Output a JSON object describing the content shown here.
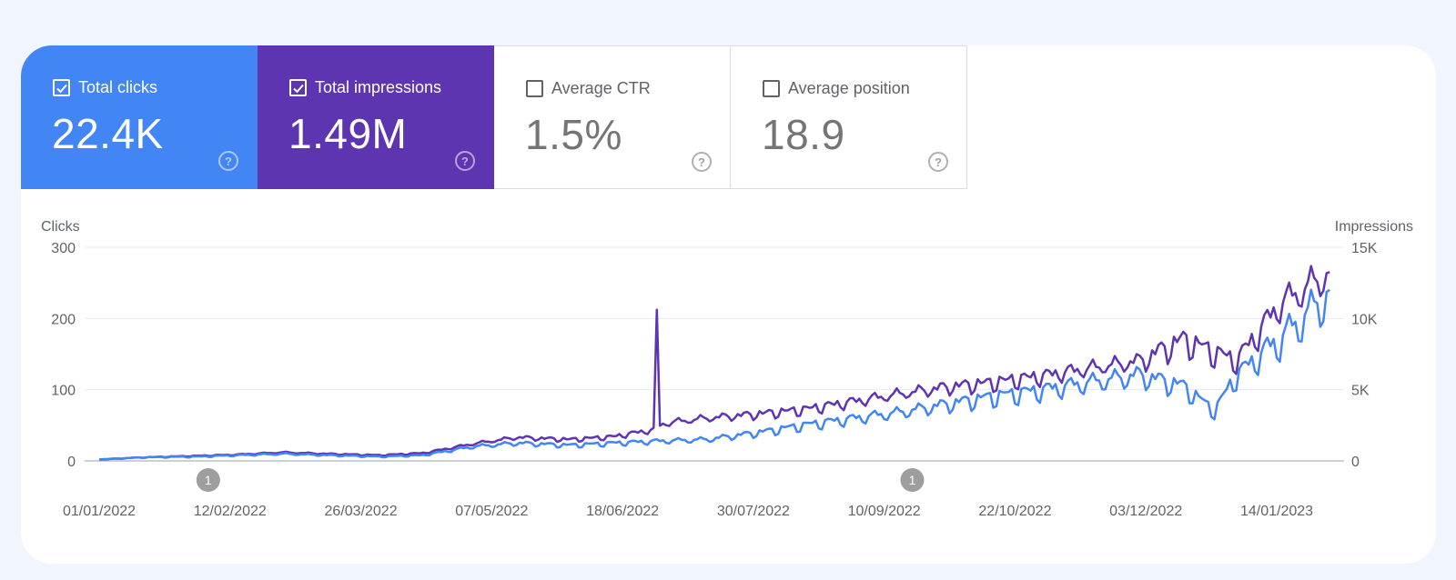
{
  "metrics": [
    {
      "label": "Total clicks",
      "value": "22.4K",
      "checked": true,
      "color": "#4285f4"
    },
    {
      "label": "Total impressions",
      "value": "1.49M",
      "checked": true,
      "color": "#5e35b1"
    },
    {
      "label": "Average CTR",
      "value": "1.5%",
      "checked": false
    },
    {
      "label": "Average position",
      "value": "18.9",
      "checked": false
    }
  ],
  "icons": {
    "checkbox": "checkbox-icon",
    "help": "help-circle-icon",
    "annotation": "annotation-marker-icon"
  },
  "chart_data": {
    "type": "line",
    "x_start": "2022-01-01",
    "x_end": "2023-01-31",
    "xlabel": "",
    "y_left": {
      "label": "Clicks",
      "ylim": [
        0,
        300
      ],
      "ticks": [
        0,
        100,
        200,
        300
      ],
      "tick_labels": [
        "0",
        "100",
        "200",
        "300"
      ]
    },
    "y_right": {
      "label": "Impressions",
      "ylim": [
        0,
        15000
      ],
      "ticks": [
        0,
        5000,
        10000,
        15000
      ],
      "tick_labels": [
        "0",
        "5K",
        "10K",
        "15K"
      ]
    },
    "x_tick_labels": [
      "01/01/2022",
      "12/02/2022",
      "26/03/2022",
      "07/05/2022",
      "18/06/2022",
      "30/07/2022",
      "10/09/2022",
      "22/10/2022",
      "03/12/2022",
      "14/01/2023"
    ],
    "x_tick_dates": [
      "2022-01-01",
      "2022-02-12",
      "2022-03-26",
      "2022-05-07",
      "2022-06-18",
      "2022-07-30",
      "2022-09-10",
      "2022-10-22",
      "2022-12-03",
      "2023-01-14"
    ],
    "annotations": [
      {
        "date": "2022-02-05",
        "label": "1"
      },
      {
        "date": "2022-09-19",
        "label": "1"
      }
    ],
    "grid": true,
    "legend": "none",
    "series": [
      {
        "name": "Clicks",
        "axis": "left",
        "color": "#4285f4",
        "x": [
          "2022-01-01",
          "2022-01-15",
          "2022-02-01",
          "2022-02-15",
          "2022-03-01",
          "2022-03-15",
          "2022-04-01",
          "2022-04-15",
          "2022-05-01",
          "2022-05-15",
          "2022-06-01",
          "2022-06-15",
          "2022-07-01",
          "2022-07-15",
          "2022-08-01",
          "2022-08-15",
          "2022-09-01",
          "2022-09-15",
          "2022-10-01",
          "2022-10-15",
          "2022-11-01",
          "2022-11-15",
          "2022-12-01",
          "2022-12-15",
          "2022-12-25",
          "2023-01-01",
          "2023-01-15",
          "2023-01-31"
        ],
        "y": [
          2,
          5,
          6,
          8,
          10,
          8,
          6,
          8,
          20,
          25,
          22,
          25,
          28,
          30,
          40,
          50,
          60,
          68,
          80,
          90,
          100,
          110,
          120,
          105,
          70,
          120,
          170,
          235
        ]
      },
      {
        "name": "Impressions",
        "axis": "right",
        "color": "#5e35b1",
        "x": [
          "2022-01-01",
          "2022-01-15",
          "2022-02-01",
          "2022-02-15",
          "2022-03-01",
          "2022-03-15",
          "2022-04-01",
          "2022-04-15",
          "2022-05-01",
          "2022-05-15",
          "2022-06-01",
          "2022-06-15",
          "2022-06-28",
          "2022-06-29",
          "2022-06-30",
          "2022-07-03",
          "2022-07-15",
          "2022-08-01",
          "2022-08-15",
          "2022-09-01",
          "2022-09-15",
          "2022-10-01",
          "2022-10-15",
          "2022-11-01",
          "2022-11-15",
          "2022-12-01",
          "2022-12-15",
          "2023-01-01",
          "2023-01-15",
          "2023-01-31"
        ],
        "y": [
          100,
          250,
          350,
          450,
          600,
          500,
          400,
          550,
          1200,
          1650,
          1500,
          1700,
          2200,
          9800,
          2500,
          2700,
          3000,
          3300,
          3600,
          4200,
          4700,
          5200,
          5500,
          6000,
          6500,
          7000,
          8500,
          7000,
          11000,
          13200
        ]
      }
    ]
  }
}
